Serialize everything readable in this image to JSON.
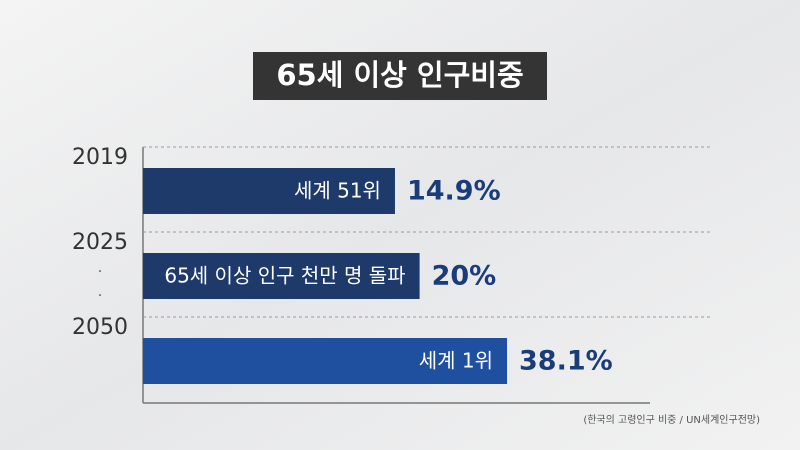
{
  "chart_data": {
    "type": "hbar",
    "title": "65세 이상 인구비중",
    "categories": [
      "2019",
      "2025",
      "2050"
    ],
    "values": [
      14.9,
      20,
      38.1
    ],
    "value_labels": [
      "14.9%",
      "20%",
      "38.1%"
    ],
    "bar_texts": [
      "세계 51위",
      "65세 이상 인구 천만 명 돌파",
      "세계 1위"
    ],
    "colors": [
      "#1d3a6b",
      "#1d3a6b",
      "#1f4f9f"
    ],
    "source": "(한국의 고령인구 비중 / UN세계인구전망)"
  }
}
